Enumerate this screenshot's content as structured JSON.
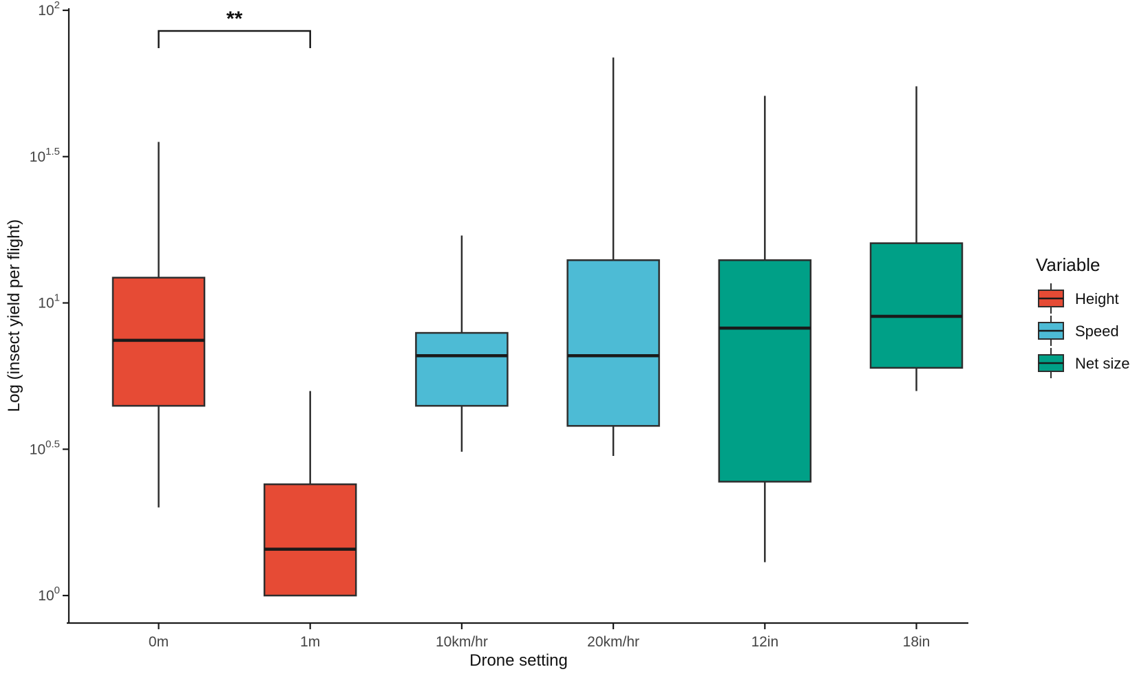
{
  "figure": {
    "background": "#ffffff",
    "axis_line_color": "#1a1a1a",
    "box_border_color": "#2e2e2e",
    "median_color": "#1a1a1a"
  },
  "chart_data": {
    "type": "boxplot",
    "title": "",
    "xlabel": "Drone setting",
    "ylabel": "Log (insect yield per flight)",
    "y_scale": "log10",
    "ylim": [
      0.8,
      105
    ],
    "grid": "off",
    "y_ticks": [
      {
        "exp": 0,
        "base": "10",
        "sup": "0"
      },
      {
        "exp": 0.5,
        "base": "10",
        "sup": "0.5"
      },
      {
        "exp": 1,
        "base": "10",
        "sup": "1"
      },
      {
        "exp": 1.5,
        "base": "10",
        "sup": "1.5"
      },
      {
        "exp": 2,
        "base": "10",
        "sup": "2"
      }
    ],
    "categories": [
      "0m",
      "1m",
      "10km/hr",
      "20km/hr",
      "12in",
      "18in"
    ],
    "groups": [
      {
        "name": "Height",
        "color": "#E64B35",
        "categories": [
          "0m",
          "1m"
        ]
      },
      {
        "name": "Speed",
        "color": "#4DBBD5",
        "categories": [
          "10km/hr",
          "20km/hr"
        ]
      },
      {
        "name": "Net size",
        "color": "#00A087",
        "categories": [
          "12in",
          "18in"
        ]
      }
    ],
    "boxes": [
      {
        "category": "0m",
        "group": "Height",
        "min": 2.0,
        "q1": 4.45,
        "median": 7.45,
        "q3": 12.2,
        "max": 35.5
      },
      {
        "category": "1m",
        "group": "Height",
        "min": 1.0,
        "q1": 1.0,
        "median": 1.44,
        "q3": 2.4,
        "max": 5.0
      },
      {
        "category": "10km/hr",
        "group": "Speed",
        "min": 3.1,
        "q1": 4.45,
        "median": 6.6,
        "q3": 7.9,
        "max": 17.0
      },
      {
        "category": "20km/hr",
        "group": "Speed",
        "min": 3.0,
        "q1": 3.8,
        "median": 6.6,
        "q3": 14.0,
        "max": 69.0
      },
      {
        "category": "12in",
        "group": "Net size",
        "min": 1.3,
        "q1": 2.45,
        "median": 8.2,
        "q3": 14.0,
        "max": 51.0
      },
      {
        "category": "18in",
        "group": "Net size",
        "min": 5.0,
        "q1": 6.0,
        "median": 9.0,
        "q3": 16.0,
        "max": 55.0
      }
    ],
    "annotation": {
      "label": "**",
      "x1": "0m",
      "x2": "1m",
      "y_value": 85
    },
    "legend": {
      "title": "Variable",
      "position": "right",
      "items": [
        {
          "label": "Height",
          "color": "#E64B35"
        },
        {
          "label": "Speed",
          "color": "#4DBBD5"
        },
        {
          "label": "Net size",
          "color": "#00A087"
        }
      ]
    }
  }
}
